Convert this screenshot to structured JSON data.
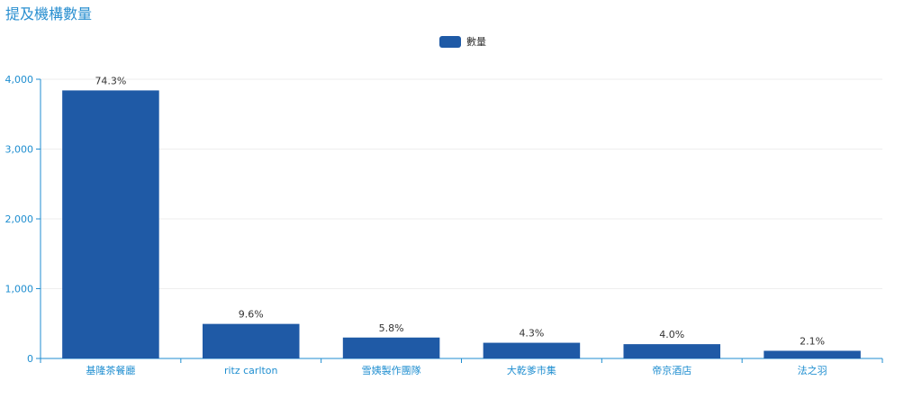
{
  "title": "提及機構數量",
  "chart_data": {
    "type": "bar",
    "title": "提及機構數量",
    "categories": [
      "基隆茶餐廳",
      "ritz carlton",
      "雪姨製作團隊",
      "大乾爹市集",
      "帝京酒店",
      "法之羽"
    ],
    "series": [
      {
        "name": "數量",
        "color": "#1f5aa6",
        "values": [
          3840,
          495,
          300,
          225,
          205,
          110
        ],
        "labels": [
          "74.3%",
          "9.6%",
          "5.8%",
          "4.3%",
          "4.0%",
          "2.1%"
        ]
      }
    ],
    "yticks": [
      "0",
      "1,000",
      "2,000",
      "3,000",
      "4,000"
    ],
    "ylim": [
      0,
      4000
    ],
    "xlabel": "",
    "ylabel": "",
    "grid": true,
    "legend": "top-center"
  }
}
